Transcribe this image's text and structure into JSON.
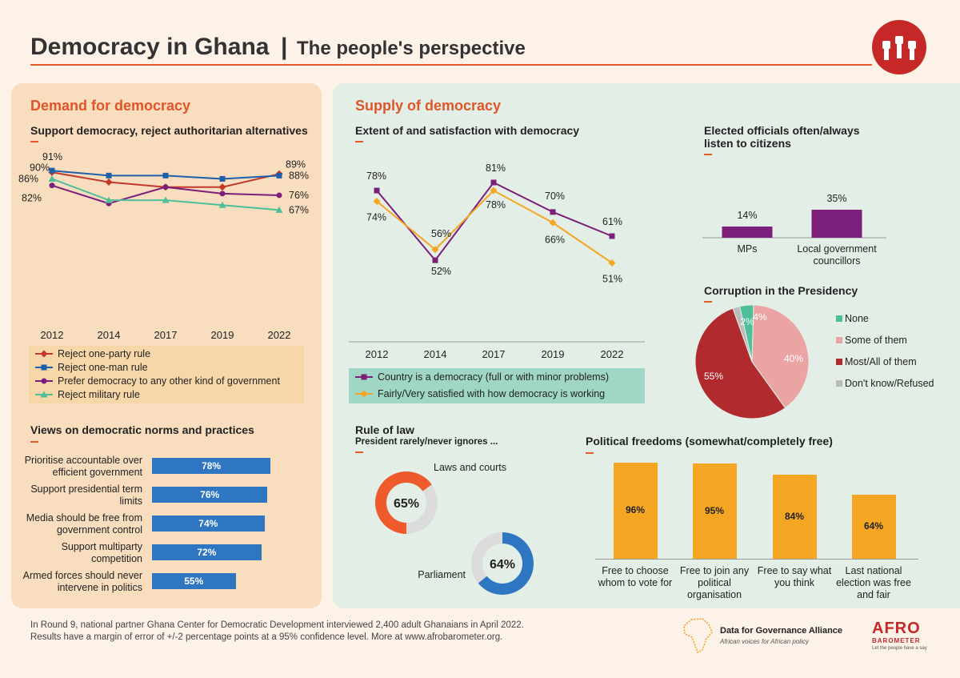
{
  "header": {
    "title": "Democracy in Ghana",
    "separator": "|",
    "subtitle": "The people's perspective"
  },
  "sections": {
    "demand": "Demand for democracy",
    "supply": "Supply of democracy"
  },
  "colors": {
    "accent_orange": "#e05528",
    "purple": "#7b1f7b",
    "blue": "#2f76c2",
    "dark_blue": "#1f5ea8",
    "red": "#c0392b",
    "green": "#4fbf9a",
    "gold": "#f5a623",
    "pink": "#eba4a4",
    "maroon": "#b02a2e",
    "grey": "#bbbbbb",
    "panel_left": "#f9ddbf",
    "panel_right": "#e3efe6"
  },
  "chart_data": [
    {
      "id": "support_democracy",
      "type": "line",
      "title": "Support democracy, reject authoritarian alternatives",
      "x": [
        "2012",
        "2014",
        "2017",
        "2019",
        "2022"
      ],
      "ylim": [
        0,
        100
      ],
      "series": [
        {
          "name": "Reject one-party rule",
          "values": [
            90,
            84,
            81,
            81,
            89
          ],
          "color": "#c0392b",
          "marker": "diamond"
        },
        {
          "name": "Reject one-man rule",
          "values": [
            91,
            88,
            88,
            86,
            88
          ],
          "color": "#1f5ea8",
          "marker": "square"
        },
        {
          "name": "Prefer democracy to any other kind of government",
          "values": [
            82,
            71,
            81,
            77,
            76
          ],
          "color": "#7b1f7b",
          "marker": "circle"
        },
        {
          "name": "Reject military rule",
          "values": [
            86,
            73,
            73,
            70,
            67
          ],
          "color": "#4fbf9a",
          "marker": "triangle"
        }
      ],
      "data_labels": [
        {
          "text": "91%",
          "series": 1,
          "index": 0
        },
        {
          "text": "90%",
          "series": 0,
          "index": 0
        },
        {
          "text": "86%",
          "series": 3,
          "index": 0
        },
        {
          "text": "82%",
          "series": 2,
          "index": 0
        },
        {
          "text": "89%",
          "series": 0,
          "index": 4
        },
        {
          "text": "88%",
          "series": 1,
          "index": 4
        },
        {
          "text": "76%",
          "series": 2,
          "index": 4
        },
        {
          "text": "67%",
          "series": 3,
          "index": 4
        }
      ]
    },
    {
      "id": "extent_satisfaction",
      "type": "line",
      "title": "Extent of and satisfaction with democracy",
      "x": [
        "2012",
        "2014",
        "2017",
        "2019",
        "2022"
      ],
      "ylim": [
        0,
        100
      ],
      "series": [
        {
          "name": "Country is a democracy (full or with minor problems)",
          "values": [
            78,
            52,
            81,
            70,
            61
          ],
          "color": "#7b1f7b",
          "marker": "square"
        },
        {
          "name": "Fairly/Very satisfied with how democracy is working",
          "values": [
            74,
            56,
            78,
            66,
            51
          ],
          "color": "#f5a623",
          "marker": "diamond"
        }
      ],
      "data_labels": [
        {
          "text": "78%",
          "series": 0,
          "index": 0
        },
        {
          "text": "74%",
          "series": 1,
          "index": 0
        },
        {
          "text": "56%",
          "series": 1,
          "index": 1
        },
        {
          "text": "52%",
          "series": 0,
          "index": 1
        },
        {
          "text": "81%",
          "series": 0,
          "index": 2
        },
        {
          "text": "78%",
          "series": 1,
          "index": 2
        },
        {
          "text": "70%",
          "series": 0,
          "index": 3
        },
        {
          "text": "66%",
          "series": 1,
          "index": 3
        },
        {
          "text": "61%",
          "series": 0,
          "index": 4
        },
        {
          "text": "51%",
          "series": 1,
          "index": 4
        }
      ]
    },
    {
      "id": "elected_officials",
      "type": "bar",
      "title": "Elected officials often/always listen to citizens",
      "categories": [
        "MPs",
        "Local government councillors"
      ],
      "values": [
        14,
        35
      ],
      "labels": [
        "14%",
        "35%"
      ],
      "color": "#7b1f7b"
    },
    {
      "id": "corruption_presidency",
      "type": "pie",
      "title": "Corruption in the Presidency",
      "legend": "right",
      "slices": [
        {
          "name": "None",
          "value": 4,
          "label": "4%",
          "color": "#4fbf9a"
        },
        {
          "name": "Some of them",
          "value": 40,
          "label": "40%",
          "color": "#eba4a4"
        },
        {
          "name": "Most/All of them",
          "value": 55,
          "label": "55%",
          "color": "#b02a2e"
        },
        {
          "name": "Don't know/Refused",
          "value": 2,
          "label": "2%",
          "color": "#bbbbbb"
        }
      ]
    },
    {
      "id": "democratic_norms",
      "type": "bar",
      "orientation": "horizontal",
      "title": "Views on democratic norms and practices",
      "categories": [
        "Prioritise accountable over efficient government",
        "Support presidential term limits",
        "Media should be free from government control",
        "Support multiparty competition",
        "Armed forces should never intervene in politics"
      ],
      "values": [
        78,
        76,
        74,
        72,
        55
      ],
      "labels": [
        "78%",
        "76%",
        "74%",
        "72%",
        "55%"
      ],
      "color": "#2f76c2"
    },
    {
      "id": "rule_of_law",
      "type": "pie",
      "title": "Rule of law",
      "subtitle": "President rarely/never ignores ...",
      "donuts": [
        {
          "name": "Laws and courts",
          "value": 65,
          "label": "65%",
          "color": "#ef5a2c"
        },
        {
          "name": "Parliament",
          "value": 64,
          "label": "64%",
          "color": "#2f76c2"
        }
      ]
    },
    {
      "id": "political_freedoms",
      "type": "bar",
      "title": "Political freedoms (somewhat/completely free)",
      "categories": [
        "Free to choose whom to vote for",
        "Free to join any political organisation",
        "Free to say what you think",
        "Last national election was free and fair"
      ],
      "values": [
        96,
        95,
        84,
        64
      ],
      "labels": [
        "96%",
        "95%",
        "84%",
        "64%"
      ],
      "color": "#f5a623"
    }
  ],
  "norm_labels": [
    [
      "Prioritise accountable over",
      "efficient government"
    ],
    [
      "Support presidential term",
      "limits"
    ],
    [
      "Media should be free from",
      "government control"
    ],
    [
      "Support multiparty",
      "competition"
    ],
    [
      "Armed forces should never",
      "intervene in politics"
    ]
  ],
  "freedom_labels": [
    [
      "Free to choose",
      "whom to vote for"
    ],
    [
      "Free to join any",
      "political",
      "organisation"
    ],
    [
      "Free to say what",
      "you think"
    ],
    [
      "Last national",
      "election was free",
      "and fair"
    ]
  ],
  "official_labels": [
    [
      "MPs"
    ],
    [
      "Local government",
      "councillors"
    ]
  ],
  "elected_title_lines": [
    "Elected officials often/always",
    "listen to citizens"
  ],
  "footer": {
    "line1": "In Round 9, national partner Ghana Center for Democratic Development interviewed 2,400 adult Ghanaians in April 2022.",
    "line2": "Results have a margin of error of +/-2 percentage points at a 95% confidence level. More at www.afrobarometer.org.",
    "d4g_name": "Data for Governance Alliance",
    "d4g_tagline": "African voices for African policy",
    "afro_top": "AFRO",
    "afro_bottom": "BAROMETER",
    "afro_tagline": "Let the people have a say"
  }
}
